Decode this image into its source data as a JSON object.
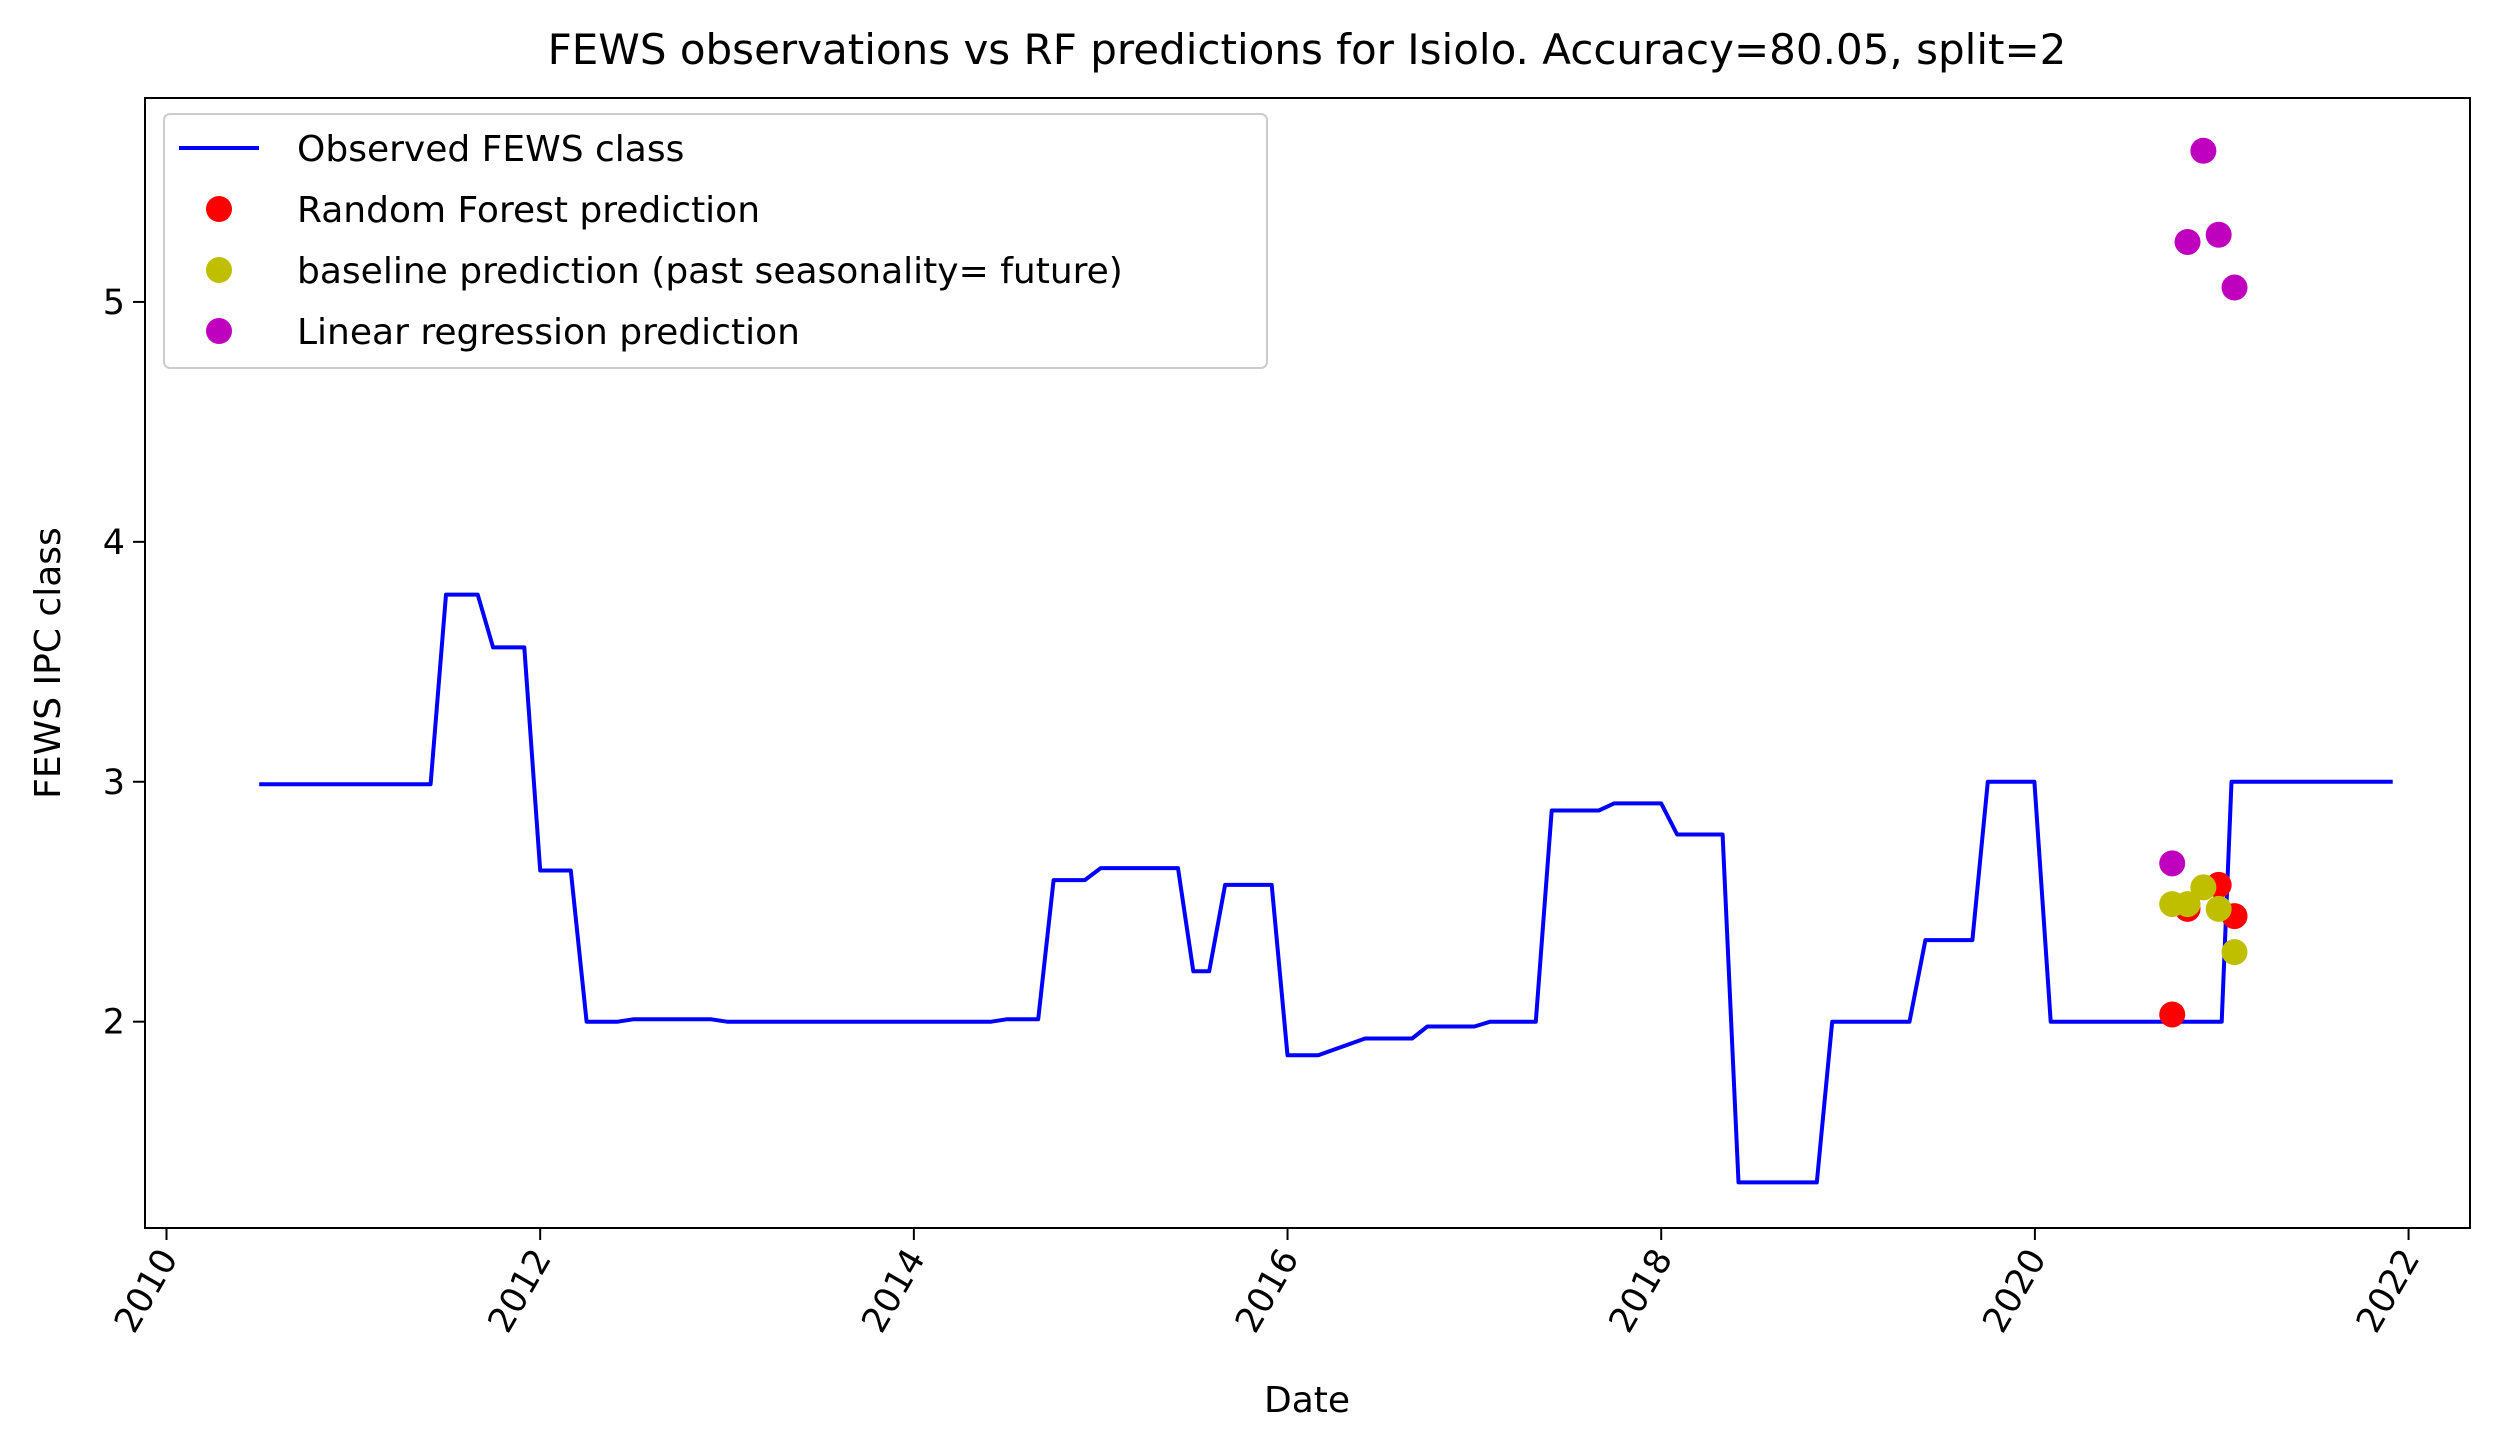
{
  "chart_data": {
    "type": "line",
    "title": "FEWS observations vs RF predictions for Isiolo. Accuracy=80.05, split=2",
    "xlabel": "Date",
    "ylabel": "FEWS IPC class",
    "x_ticks": [
      "2010",
      "2012",
      "2014",
      "2016",
      "2018",
      "2020",
      "2022"
    ],
    "y_ticks": [
      "2",
      "3",
      "4",
      "5"
    ],
    "xlim": [
      "2009-11-20",
      "2022-05-01"
    ],
    "ylim": [
      1.14,
      5.85
    ],
    "grid": false,
    "legend_position": "top-left",
    "series": [
      {
        "name": "Observed FEWS class",
        "kind": "line",
        "color": "#0000ff",
        "x": [
          "2010-07-01",
          "2011-06-01",
          "2011-07-01",
          "2011-09-01",
          "2011-10-01",
          "2011-12-01",
          "2012-01-01",
          "2012-03-01",
          "2012-04-01",
          "2012-06-01",
          "2012-07-01",
          "2012-12-01",
          "2013-01-01",
          "2014-06-01",
          "2014-07-01",
          "2014-09-01",
          "2014-10-01",
          "2014-12-01",
          "2015-01-01",
          "2015-06-01",
          "2015-07-01",
          "2015-08-01",
          "2015-09-01",
          "2015-12-01",
          "2016-01-01",
          "2016-03-01",
          "2016-06-01",
          "2016-09-01",
          "2016-10-01",
          "2017-01-01",
          "2017-02-01",
          "2017-05-01",
          "2017-06-01",
          "2017-09-01",
          "2017-10-01",
          "2018-01-01",
          "2018-02-01",
          "2018-05-01",
          "2018-06-01",
          "2018-11-01",
          "2018-12-01",
          "2019-05-01",
          "2019-06-01",
          "2019-09-01",
          "2019-10-01",
          "2019-12-31",
          "2020-02-01",
          "2021-01-01",
          "2021-01-20",
          "2021-12-01"
        ],
        "y": [
          2.99,
          2.99,
          3.78,
          3.78,
          3.56,
          3.56,
          2.63,
          2.63,
          2.0,
          2.0,
          2.01,
          2.01,
          2.0,
          2.0,
          2.01,
          2.01,
          2.59,
          2.59,
          2.64,
          2.64,
          2.21,
          2.21,
          2.57,
          2.57,
          1.86,
          1.86,
          1.93,
          1.93,
          1.98,
          1.98,
          2.0,
          2.0,
          2.88,
          2.88,
          2.91,
          2.91,
          2.78,
          2.78,
          1.33,
          1.33,
          2.0,
          2.0,
          2.34,
          2.34,
          3.0,
          3.0,
          2.0,
          2.0,
          3.0,
          3.0
        ]
      },
      {
        "name": "Random Forest prediction",
        "kind": "scatter",
        "color": "#ff0000",
        "x": [
          "2020-09-26",
          "2020-10-26",
          "2020-12-26",
          "2021-01-26"
        ],
        "y": [
          2.03,
          2.47,
          2.57,
          2.44
        ]
      },
      {
        "name": "baseline prediction (past seasonality= future)",
        "kind": "scatter",
        "color": "#bfbf00",
        "x": [
          "2020-09-26",
          "2020-10-26",
          "2020-11-26",
          "2020-12-26",
          "2021-01-26"
        ],
        "y": [
          2.49,
          2.49,
          2.56,
          2.47,
          2.29
        ]
      },
      {
        "name": "Linear regression prediction",
        "kind": "scatter",
        "color": "#bf00bf",
        "x": [
          "2020-09-26",
          "2020-10-26",
          "2020-11-26",
          "2020-12-26",
          "2021-01-26"
        ],
        "y": [
          2.66,
          5.25,
          5.63,
          5.28,
          5.06
        ]
      }
    ]
  }
}
